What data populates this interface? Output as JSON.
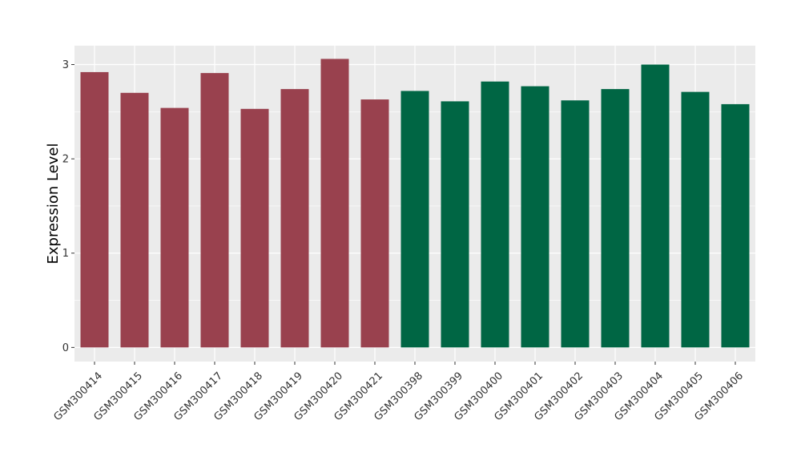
{
  "chart_data": {
    "type": "bar",
    "title": "",
    "xlabel": "",
    "ylabel": "Expression Level",
    "ylim": [
      -0.15,
      3.2
    ],
    "yticks": [
      0,
      1,
      2,
      3
    ],
    "grid": true,
    "categories": [
      "GSM300414",
      "GSM300415",
      "GSM300416",
      "GSM300417",
      "GSM300418",
      "GSM300419",
      "GSM300420",
      "GSM300421",
      "GSM300398",
      "GSM300399",
      "GSM300400",
      "GSM300401",
      "GSM300402",
      "GSM300403",
      "GSM300404",
      "GSM300405",
      "GSM300406"
    ],
    "values": [
      2.92,
      2.7,
      2.54,
      2.91,
      2.53,
      2.74,
      3.06,
      2.63,
      2.72,
      2.61,
      2.82,
      2.77,
      2.62,
      2.74,
      3.0,
      2.71,
      2.58
    ],
    "bar_colors": [
      "#99414E",
      "#99414E",
      "#99414E",
      "#99414E",
      "#99414E",
      "#99414E",
      "#99414E",
      "#99414E",
      "#006644",
      "#006644",
      "#006644",
      "#006644",
      "#006644",
      "#006644",
      "#006644",
      "#006644",
      "#006644"
    ],
    "colors": {
      "panel_bg": "#EBEBEB",
      "grid": "#FFFFFF",
      "group1": "#99414E",
      "group2": "#006644"
    }
  }
}
